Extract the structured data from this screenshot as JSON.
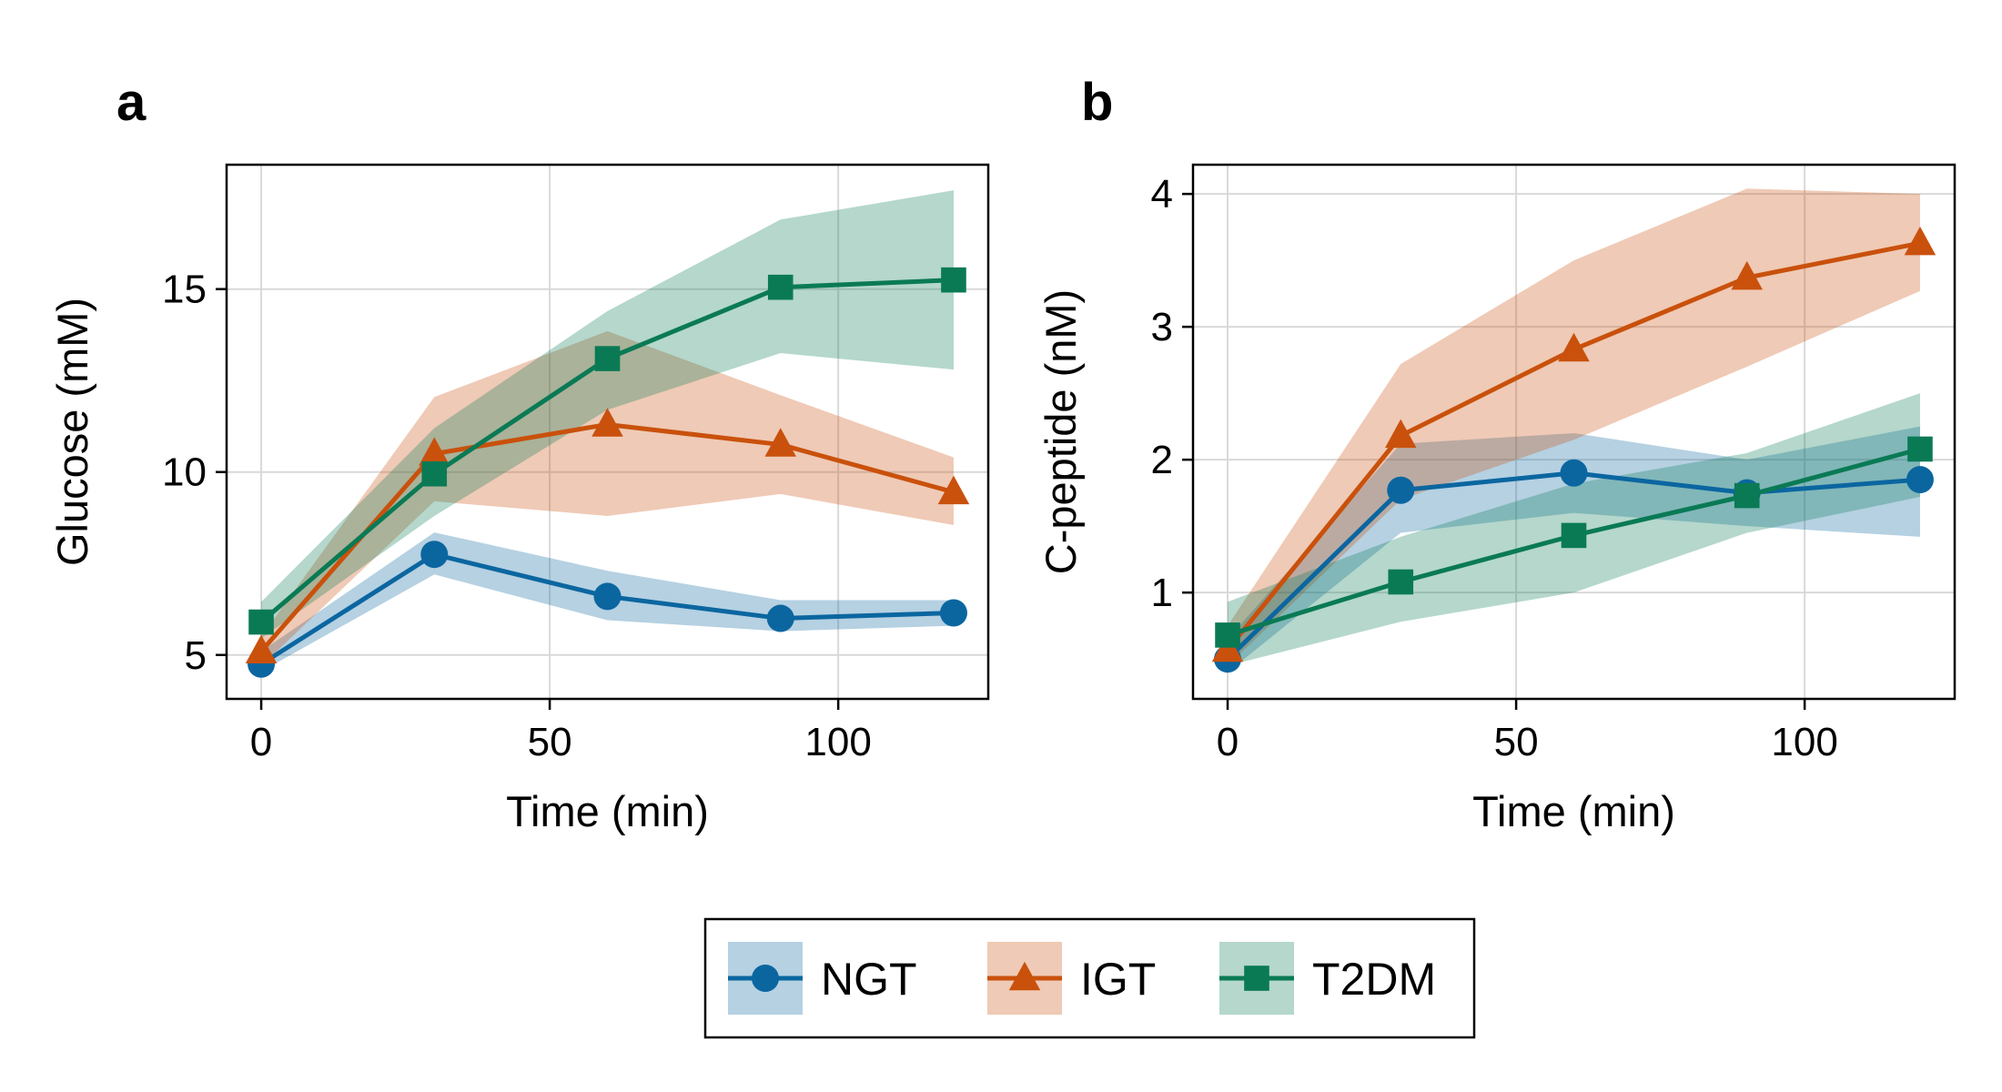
{
  "chart_data": [
    {
      "type": "line",
      "panel_label": "a",
      "title": "",
      "xlabel": "Time (min)",
      "ylabel": "Glucose (mM)",
      "xlim": [
        -6,
        126
      ],
      "ylim": [
        3.8,
        18.4
      ],
      "xticks": [
        0,
        50,
        100
      ],
      "yticks": [
        5,
        10,
        15
      ],
      "grid": true,
      "x": [
        0,
        30,
        60,
        90,
        120
      ],
      "series": [
        {
          "name": "NGT",
          "values": [
            4.75,
            7.75,
            6.6,
            6.0,
            6.15
          ],
          "lower": [
            4.55,
            7.2,
            5.95,
            5.65,
            5.8
          ],
          "upper": [
            5.1,
            8.35,
            7.3,
            6.5,
            6.5
          ]
        },
        {
          "name": "IGT",
          "values": [
            5.1,
            10.5,
            11.3,
            10.75,
            9.45
          ],
          "lower": [
            4.7,
            9.2,
            8.8,
            9.4,
            8.55
          ],
          "upper": [
            5.5,
            12.05,
            13.85,
            12.1,
            10.4
          ]
        },
        {
          "name": "T2DM",
          "values": [
            5.9,
            9.95,
            13.1,
            15.05,
            15.25
          ],
          "lower": [
            5.45,
            8.8,
            11.7,
            13.25,
            12.8
          ],
          "upper": [
            6.45,
            11.2,
            14.4,
            16.9,
            17.7
          ]
        }
      ]
    },
    {
      "type": "line",
      "panel_label": "b",
      "title": "",
      "xlabel": "Time (min)",
      "ylabel": "C-peptide (nM)",
      "xlim": [
        -6,
        126
      ],
      "ylim": [
        0.2,
        4.22
      ],
      "xticks": [
        0,
        50,
        100
      ],
      "yticks": [
        1,
        2,
        3,
        4
      ],
      "grid": true,
      "x": [
        0,
        30,
        60,
        90,
        120
      ],
      "series": [
        {
          "name": "NGT",
          "values": [
            0.5,
            1.77,
            1.9,
            1.75,
            1.85
          ],
          "lower": [
            0.4,
            1.45,
            1.6,
            1.5,
            1.42
          ],
          "upper": [
            0.65,
            2.12,
            2.2,
            2.0,
            2.25
          ]
        },
        {
          "name": "IGT",
          "values": [
            0.57,
            2.18,
            2.83,
            3.37,
            3.63
          ],
          "lower": [
            0.45,
            1.7,
            2.15,
            2.7,
            3.27
          ],
          "upper": [
            0.75,
            2.72,
            3.5,
            4.04,
            4.0
          ]
        },
        {
          "name": "T2DM",
          "values": [
            0.68,
            1.08,
            1.43,
            1.73,
            2.08
          ],
          "lower": [
            0.45,
            0.78,
            1.0,
            1.45,
            1.72
          ],
          "upper": [
            0.93,
            1.42,
            1.82,
            2.05,
            2.5
          ]
        }
      ]
    }
  ],
  "legend": {
    "placement": "bottom-center",
    "entries": [
      {
        "label": "NGT",
        "marker": "circle",
        "color": "#0b66a0"
      },
      {
        "label": "IGT",
        "marker": "triangle",
        "color": "#c9510c"
      },
      {
        "label": "T2DM",
        "marker": "square",
        "color": "#0a7a55"
      }
    ]
  },
  "colors": {
    "NGT": "#0b66a0",
    "IGT": "#c9510c",
    "T2DM": "#0a7a55",
    "grid": "#d9d9d9",
    "frame": "#000000"
  }
}
